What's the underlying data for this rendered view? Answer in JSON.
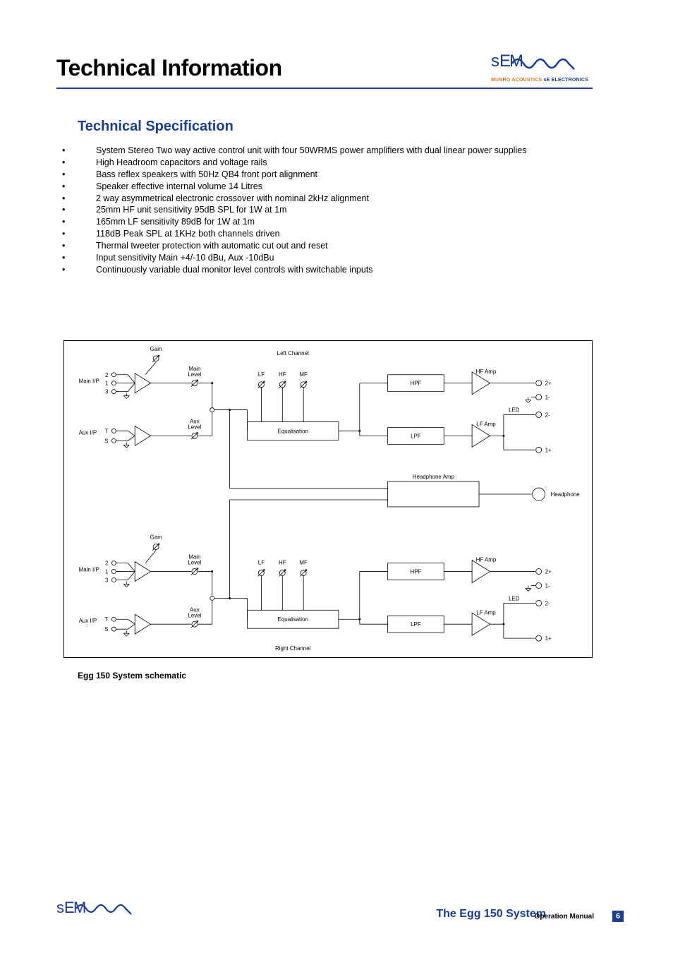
{
  "page": {
    "title": "Technical Information",
    "subheading": "Technical Specification",
    "schematic_caption": "Egg 150 System schematic",
    "footer_title": "The Egg 150 System",
    "footer_sub": "Operation Manual",
    "page_number": "6"
  },
  "logo": {
    "brand_orange": "MUNRO ACOUSTICS",
    "brand_blue": "sE ELECTRONICS",
    "accent_color": "#1a3e8c",
    "orange_color": "#d97a2a"
  },
  "specs": [
    "System Stereo Two way active control unit with four 50WRMS power amplifiers with dual linear power supplies",
    "High Headroom capacitors and voltage rails",
    "Bass reflex speakers with 50Hz QB4 front port alignment",
    "Speaker effective internal volume 14 Litres",
    "2 way asymmetrical electronic crossover with nominal 2kHz alignment",
    "25mm HF unit sensitivity 95dB SPL for 1W at 1m",
    "165mm LF sensitivity 89dB for 1W at 1m",
    "118dB Peak SPL at 1KHz both channels driven",
    "Thermal tweeter protection with automatic cut out and reset",
    "Input sensitivity Main +4/-10 dBu, Aux -10dBu",
    "Continuously variable dual monitor level controls with switchable inputs"
  ],
  "schematic": {
    "channel_labels": {
      "left": "Left Channel",
      "right": "Right Channel"
    },
    "labels": {
      "gain": "Gain",
      "main_level": "Main\nLevel",
      "aux_level": "Aux\nLevel",
      "lf": "LF",
      "hf": "HF",
      "mf": "MF",
      "eq": "Equalisation",
      "hpf": "HPF",
      "lpf": "LPF",
      "hf_amp": "HF Amp",
      "lf_amp": "LF Amp",
      "hp_amp": "Headphone Amp",
      "headphone": "Headphone",
      "led": "LED",
      "main_ip": "Main I/P",
      "aux_ip": "Aux I/P",
      "pins_main": [
        "2",
        "1",
        "3"
      ],
      "pins_aux": [
        "T",
        "S"
      ],
      "outs": [
        "2+",
        "1-",
        "2-",
        "1+"
      ]
    },
    "colors": {
      "stroke": "#000000",
      "fill": "none",
      "text": "#000000"
    },
    "font_size": 8,
    "line_width": 0.8
  }
}
